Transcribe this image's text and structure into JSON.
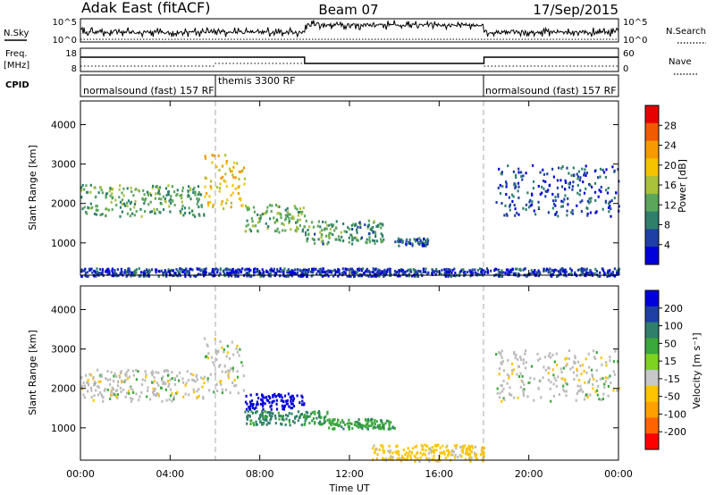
{
  "header": {
    "station": "Adak East (fitACF)",
    "beam": "Beam 07",
    "date": "17/Sep/2015"
  },
  "strips": {
    "nsky_label": "N.Sky",
    "nsky_ticks": [
      "10^5",
      "10^0"
    ],
    "nsearch_label": "N.Search",
    "nsearch_ticks": [
      "10^5",
      "10^0"
    ],
    "freq_label": "Freq.",
    "freq_unit": "[MHz]",
    "freq_ticks": [
      "18",
      "8"
    ],
    "nave_label": "Nave",
    "nave_ticks": [
      "60",
      "0"
    ],
    "cpid_label": "CPID",
    "cpid_segments": [
      "normalsound (fast) 157 RF",
      "themis 3300 RF",
      "normalsound (fast) 157 RF"
    ]
  },
  "x_axis": {
    "label": "Time UT",
    "ticks": [
      "00:00",
      "04:00",
      "08:00",
      "12:00",
      "16:00",
      "20:00",
      "00:00"
    ]
  },
  "colors": {
    "power_scale": [
      "#0000dd",
      "#1e3fa5",
      "#2f7f6b",
      "#5aa65a",
      "#aac23a",
      "#f5c400",
      "#f59a00",
      "#f05a00",
      "#e80000"
    ],
    "velocity_scale": [
      "#ff0000",
      "#ff6400",
      "#ffa000",
      "#ffc400",
      "#c8c8c8",
      "#7ed321",
      "#3aa83a",
      "#2f7f6b",
      "#1e3fa5",
      "#0000dd"
    ],
    "ground_scatter": "#bbbbbb"
  },
  "chart_data": [
    {
      "type": "heatmap",
      "title": "",
      "xlabel": "Time UT",
      "ylabel": "Slant Range [km]",
      "xlim": [
        0,
        24
      ],
      "ylim": [
        180,
        4600
      ],
      "yticks": [
        "1000",
        "2000",
        "3000",
        "4000"
      ],
      "colorbar": {
        "label": "Power [dB]",
        "ticks": [
          "4",
          "8",
          "12",
          "16",
          "20",
          "24",
          "28"
        ],
        "range": [
          0,
          30
        ]
      },
      "echo_bands": [
        {
          "t": [
            0.0,
            5.5
          ],
          "range": [
            1700,
            2500
          ],
          "level": 11
        },
        {
          "t": [
            5.5,
            7.3
          ],
          "range": [
            1900,
            3300
          ],
          "level": 19
        },
        {
          "t": [
            7.3,
            10.0
          ],
          "range": [
            1300,
            2000
          ],
          "level": 12
        },
        {
          "t": [
            10.0,
            13.5
          ],
          "range": [
            1000,
            1600
          ],
          "level": 10
        },
        {
          "t": [
            14.0,
            15.5
          ],
          "range": [
            950,
            1150
          ],
          "level": 6
        },
        {
          "t": [
            18.5,
            24.0
          ],
          "range": [
            1700,
            3000
          ],
          "level": 5
        },
        {
          "t": [
            0.0,
            24.0
          ],
          "range": [
            180,
            380
          ],
          "level": 4
        }
      ]
    },
    {
      "type": "heatmap",
      "title": "",
      "xlabel": "Time UT",
      "ylabel": "Slant Range [km]",
      "xlim": [
        0,
        24
      ],
      "ylim": [
        180,
        4600
      ],
      "yticks": [
        "1000",
        "2000",
        "3000",
        "4000"
      ],
      "colorbar": {
        "label": "Velocity [m s⁻¹]",
        "ticks": [
          "200",
          "100",
          "50",
          "15",
          "-15",
          "-50",
          "-100",
          "-200"
        ],
        "range": [
          -250,
          250
        ]
      },
      "echo_bands": [
        {
          "t": [
            0.0,
            5.5
          ],
          "range": [
            1700,
            2500
          ],
          "velocity": 0
        },
        {
          "t": [
            5.5,
            7.3
          ],
          "range": [
            1900,
            3300
          ],
          "velocity": 0
        },
        {
          "t": [
            7.3,
            10.0
          ],
          "range": [
            1500,
            1900
          ],
          "velocity": 220
        },
        {
          "t": [
            7.3,
            11.0
          ],
          "range": [
            1100,
            1450
          ],
          "velocity": 60
        },
        {
          "t": [
            11.0,
            14.0
          ],
          "range": [
            1000,
            1250
          ],
          "velocity": 40
        },
        {
          "t": [
            13.0,
            18.0
          ],
          "range": [
            180,
            600
          ],
          "velocity": -30
        },
        {
          "t": [
            18.5,
            24.0
          ],
          "range": [
            1700,
            3000
          ],
          "velocity": 0
        }
      ]
    }
  ]
}
